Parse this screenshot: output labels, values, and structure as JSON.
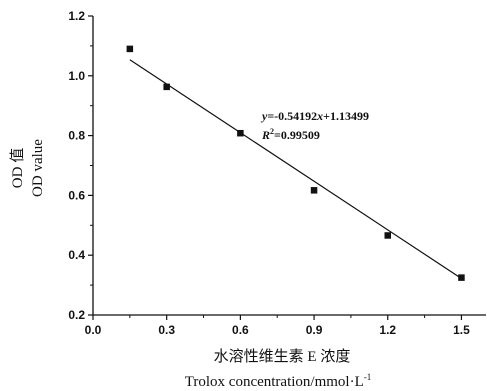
{
  "chart_data": {
    "type": "scatter",
    "xlabel_zh": "水溶性维生素 E 浓度",
    "xlabel_en": "Trolox concentration/mmol·L",
    "xlabel_unit_sup": "-1",
    "ylabel_zh": "OD 值",
    "ylabel_en": "OD value",
    "xlim": [
      0.0,
      1.6
    ],
    "ylim": [
      0.2,
      1.2
    ],
    "x_ticks": [
      0.0,
      0.3,
      0.6,
      0.9,
      1.2,
      1.5
    ],
    "x_tick_labels": [
      "0.0",
      "0.3",
      "0.6",
      "0.9",
      "1.2",
      "1.5"
    ],
    "y_ticks": [
      0.2,
      0.4,
      0.6,
      0.8,
      1.0,
      1.2
    ],
    "y_tick_labels": [
      "0.2",
      "0.4",
      "0.6",
      "0.8",
      "1.0",
      "1.2"
    ],
    "points": [
      {
        "x": 0.15,
        "y": 1.09
      },
      {
        "x": 0.3,
        "y": 0.963
      },
      {
        "x": 0.6,
        "y": 0.808
      },
      {
        "x": 0.9,
        "y": 0.617
      },
      {
        "x": 1.2,
        "y": 0.466
      },
      {
        "x": 1.5,
        "y": 0.325
      }
    ],
    "fit": {
      "slope": -0.54192,
      "intercept": 1.13499,
      "x_range": [
        0.15,
        1.5
      ]
    },
    "equation": {
      "y_prefix": "y",
      "text": "=-0.54192",
      "x_var": "x",
      "text2": "+1.13499"
    },
    "r2": {
      "r": "R",
      "sup": "2",
      "text": "=0.99509"
    },
    "grid": false
  }
}
